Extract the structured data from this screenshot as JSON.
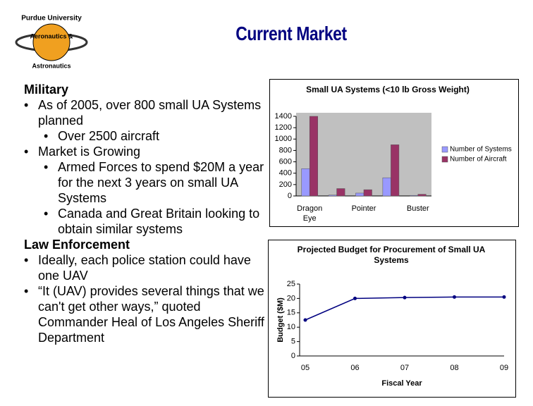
{
  "logo": {
    "top": "Purdue University",
    "middle": "Aeronautics &",
    "bottom": "Astronautics"
  },
  "title": "Current Market",
  "sections": [
    {
      "heading": "Military",
      "items": [
        {
          "text": "As of 2005, over 800 small UA Systems planned",
          "subitems": [
            "Over 2500 aircraft"
          ]
        },
        {
          "text": "Market is Growing",
          "subitems": [
            "Armed Forces to spend $20M a year for the next 3 years on small UA Systems",
            "Canada and Great Britain looking to obtain similar systems"
          ]
        }
      ]
    },
    {
      "heading": "Law Enforcement",
      "items": [
        {
          "text": "Ideally, each police station could have one UAV",
          "subitems": []
        },
        {
          "text": "“It (UAV) provides several things that we can't get other ways,” quoted Commander Heal of Los Angeles Sheriff Department",
          "subitems": []
        }
      ]
    }
  ],
  "chart_data": [
    {
      "type": "bar",
      "title": "Small UA Systems (<10 lb Gross Weight)",
      "categories": [
        "Dragon Eye",
        null,
        "Pointer",
        null,
        "Buster"
      ],
      "series": [
        {
          "name": "Number of Systems",
          "color": "#9999ff",
          "values": [
            480,
            15,
            50,
            320,
            10
          ]
        },
        {
          "name": "Number of Aircraft",
          "color": "#993366",
          "values": [
            1400,
            130,
            110,
            900,
            30
          ]
        }
      ],
      "ylim": [
        0,
        1400
      ],
      "yticks": [
        0,
        200,
        400,
        600,
        800,
        1000,
        1200,
        1400
      ],
      "legend": "right"
    },
    {
      "type": "line",
      "title": "Projected Budget for Procurement of Small UA Systems",
      "categories": [
        "05",
        "06",
        "07",
        "08",
        "09"
      ],
      "values": [
        12.5,
        20,
        20.3,
        20.5,
        20.5
      ],
      "color": "#000080",
      "xlabel": "Fiscal Year",
      "ylabel": "Budget ($M)",
      "ylim": [
        0,
        25
      ],
      "yticks": [
        0,
        5,
        10,
        15,
        20,
        25
      ]
    }
  ]
}
